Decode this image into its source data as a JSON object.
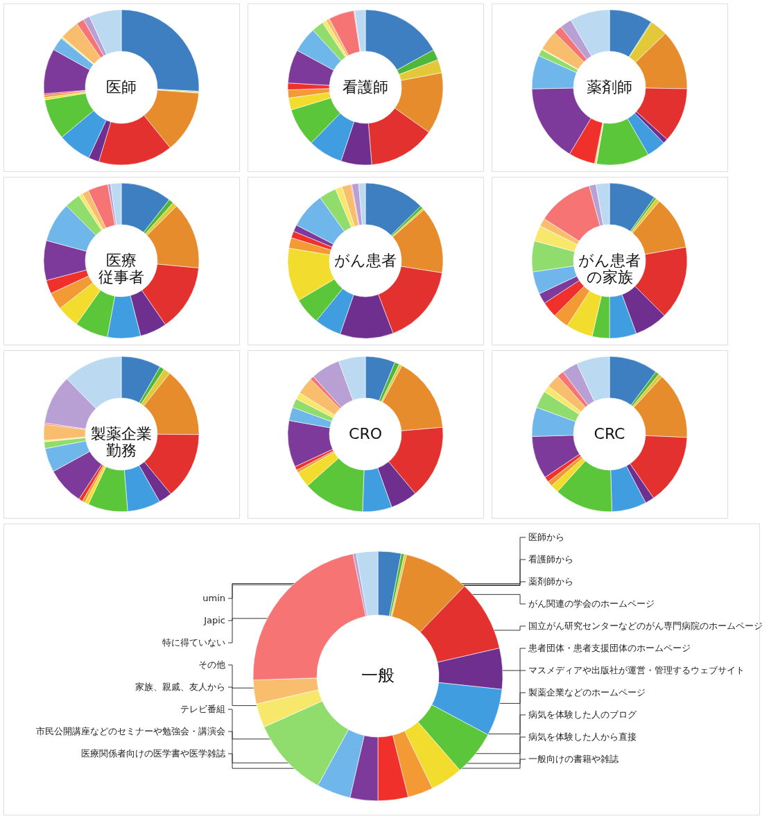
{
  "chart_data": [
    {
      "type": "donut",
      "title": "医師",
      "categories": [
        null,
        null,
        null,
        null,
        null,
        null,
        null,
        null,
        null,
        null,
        null,
        null,
        null,
        null,
        null,
        null,
        null,
        null,
        null
      ],
      "values": [
        25.8,
        0.2,
        0.2,
        13,
        15.5,
        2.2,
        7,
        8.5,
        0.5,
        0.5,
        0.3,
        9.4,
        2.8,
        0.2,
        0.2,
        4,
        1.6,
        1.4,
        6.7
      ],
      "colors": [
        "#3d7fc0",
        "#4fb83a",
        "#e3c93a",
        "#e68c2c",
        "#e2312e",
        "#6e2f8e",
        "#3f9de0",
        "#5cc63a",
        "#f2dd2e",
        "#f39a35",
        "#f0302a",
        "#7e3a9a",
        "#6fb7ea",
        "#90dd6e",
        "#f7e86c",
        "#f8be6e",
        "#f77474",
        "#b9a0d4",
        "#bcd9f2"
      ]
    },
    {
      "type": "donut",
      "title": "看護師",
      "categories": [
        null,
        null,
        null,
        null,
        null,
        null,
        null,
        null,
        null,
        null,
        null,
        null,
        null,
        null,
        null,
        null,
        null,
        null,
        null
      ],
      "values": [
        17,
        2.2,
        2.8,
        12.8,
        13.9,
        6.4,
        7.2,
        8,
        2.5,
        1.7,
        1.4,
        7,
        5.3,
        2.5,
        0.8,
        0.8,
        5.3,
        0.2,
        2.2
      ],
      "colors": [
        "#3d7fc0",
        "#4fb83a",
        "#e3c93a",
        "#e68c2c",
        "#e2312e",
        "#6e2f8e",
        "#3f9de0",
        "#5cc63a",
        "#f2dd2e",
        "#f39a35",
        "#f0302a",
        "#7e3a9a",
        "#6fb7ea",
        "#90dd6e",
        "#f7e86c",
        "#f8be6e",
        "#f77474",
        "#b9a0d4",
        "#bcd9f2"
      ]
    },
    {
      "type": "donut",
      "title": "薬剤師",
      "categories": [
        null,
        null,
        null,
        null,
        null,
        null,
        null,
        null,
        null,
        null,
        null,
        null,
        null,
        null,
        null,
        null,
        null,
        null,
        null
      ],
      "values": [
        9,
        0.2,
        3.6,
        12.5,
        11.4,
        1,
        4,
        11,
        0.2,
        0.2,
        5.5,
        16.1,
        7,
        1.4,
        0.2,
        4.2,
        1.7,
        2.5,
        8.3
      ],
      "colors": [
        "#3d7fc0",
        "#4fb83a",
        "#e3c93a",
        "#e68c2c",
        "#e2312e",
        "#6e2f8e",
        "#3f9de0",
        "#5cc63a",
        "#f2dd2e",
        "#f39a35",
        "#f0302a",
        "#7e3a9a",
        "#6fb7ea",
        "#90dd6e",
        "#f7e86c",
        "#f8be6e",
        "#f77474",
        "#b9a0d4",
        "#bcd9f2"
      ]
    },
    {
      "type": "donut",
      "title": "医療従事者",
      "categories": [
        null,
        null,
        null,
        null,
        null,
        null,
        null,
        null,
        null,
        null,
        null,
        null,
        null,
        null,
        null,
        null,
        null,
        null,
        null
      ],
      "values": [
        10.6,
        1,
        1,
        13.9,
        13.9,
        5.6,
        6.9,
        6.9,
        4.7,
        3.6,
        2.8,
        8.3,
        8.3,
        3.3,
        0.8,
        1.4,
        4.2,
        0.6,
        2.2
      ],
      "colors": [
        "#3d7fc0",
        "#4fb83a",
        "#e3c93a",
        "#e68c2c",
        "#e2312e",
        "#6e2f8e",
        "#3f9de0",
        "#5cc63a",
        "#f2dd2e",
        "#f39a35",
        "#f0302a",
        "#7e3a9a",
        "#6fb7ea",
        "#90dd6e",
        "#f7e86c",
        "#f8be6e",
        "#f77474",
        "#b9a0d4",
        "#bcd9f2"
      ]
    },
    {
      "type": "donut",
      "title": "がん患者",
      "categories": [
        null,
        null,
        null,
        null,
        null,
        null,
        null,
        null,
        null,
        null,
        null,
        null,
        null,
        null,
        null,
        null,
        null,
        null,
        null
      ],
      "values": [
        12.6,
        0.6,
        0.4,
        13.9,
        16.7,
        11.1,
        5.6,
        5.6,
        11.1,
        2.2,
        1.4,
        1.4,
        7.5,
        3.6,
        1.4,
        1.9,
        0.2,
        1.4,
        1.4
      ],
      "colors": [
        "#3d7fc0",
        "#4fb83a",
        "#e3c93a",
        "#e68c2c",
        "#e2312e",
        "#6e2f8e",
        "#3f9de0",
        "#5cc63a",
        "#f2dd2e",
        "#f39a35",
        "#f0302a",
        "#7e3a9a",
        "#6fb7ea",
        "#90dd6e",
        "#f7e86c",
        "#f8be6e",
        "#f77474",
        "#b9a0d4",
        "#bcd9f2"
      ]
    },
    {
      "type": "donut",
      "title": "がん患者の家族",
      "categories": [
        null,
        null,
        null,
        null,
        null,
        null,
        null,
        null,
        null,
        null,
        null,
        null,
        null,
        null,
        null,
        null,
        null,
        null,
        null
      ],
      "values": [
        9.8,
        0.5,
        0.8,
        11.1,
        15.3,
        6.9,
        5.6,
        3.6,
        5.6,
        3.3,
        3.3,
        2.2,
        4.7,
        6.4,
        3.3,
        1.7,
        11.7,
        1.4,
        2.8
      ],
      "colors": [
        "#3d7fc0",
        "#4fb83a",
        "#e3c93a",
        "#e68c2c",
        "#e2312e",
        "#6e2f8e",
        "#3f9de0",
        "#5cc63a",
        "#f2dd2e",
        "#f39a35",
        "#f0302a",
        "#7e3a9a",
        "#6fb7ea",
        "#90dd6e",
        "#f7e86c",
        "#f8be6e",
        "#f77474",
        "#b9a0d4",
        "#bcd9f2"
      ]
    },
    {
      "type": "donut",
      "title": "製薬企業勤務",
      "categories": [
        null,
        null,
        null,
        null,
        null,
        null,
        null,
        null,
        null,
        null,
        null,
        null,
        null,
        null,
        null,
        null,
        null,
        null,
        null
      ],
      "values": [
        8.3,
        1,
        1.4,
        14.4,
        13.9,
        2.8,
        6.9,
        8.3,
        0.8,
        0.6,
        0.8,
        7.8,
        5,
        1.4,
        0.3,
        3.3,
        0.3,
        10.3,
        12.4
      ],
      "colors": [
        "#3d7fc0",
        "#4fb83a",
        "#e3c93a",
        "#e68c2c",
        "#e2312e",
        "#6e2f8e",
        "#3f9de0",
        "#5cc63a",
        "#f2dd2e",
        "#f39a35",
        "#f0302a",
        "#7e3a9a",
        "#6fb7ea",
        "#90dd6e",
        "#f7e86c",
        "#f8be6e",
        "#f77474",
        "#b9a0d4",
        "#bcd9f2"
      ]
    },
    {
      "type": "donut",
      "title": "CRO",
      "categories": [
        null,
        null,
        null,
        null,
        null,
        null,
        null,
        null,
        null,
        null,
        null,
        null,
        null,
        null,
        null,
        null,
        null,
        null,
        null
      ],
      "values": [
        6.2,
        1,
        0.6,
        15.8,
        15.3,
        5.6,
        6.1,
        12.8,
        3.3,
        0.6,
        0.8,
        9.7,
        2.8,
        1.9,
        1.4,
        3.6,
        0.8,
        6.1,
        5.6
      ],
      "colors": [
        "#3d7fc0",
        "#4fb83a",
        "#e3c93a",
        "#e68c2c",
        "#e2312e",
        "#6e2f8e",
        "#3f9de0",
        "#5cc63a",
        "#f2dd2e",
        "#f39a35",
        "#f0302a",
        "#7e3a9a",
        "#6fb7ea",
        "#90dd6e",
        "#f7e86c",
        "#f8be6e",
        "#f77474",
        "#b9a0d4",
        "#bcd9f2"
      ]
    },
    {
      "type": "donut",
      "title": "CRC",
      "categories": [
        null,
        null,
        null,
        null,
        null,
        null,
        null,
        null,
        null,
        null,
        null,
        null,
        null,
        null,
        null,
        null,
        null,
        null,
        null
      ],
      "values": [
        10.2,
        0.8,
        0.8,
        13.9,
        14.7,
        1.9,
        7.2,
        12.2,
        1.7,
        1.1,
        1.1,
        8.9,
        6.1,
        3.6,
        1.4,
        2.8,
        1.4,
        3.3,
        6.9
      ],
      "colors": [
        "#3d7fc0",
        "#4fb83a",
        "#e3c93a",
        "#e68c2c",
        "#e2312e",
        "#6e2f8e",
        "#3f9de0",
        "#5cc63a",
        "#f2dd2e",
        "#f39a35",
        "#f0302a",
        "#7e3a9a",
        "#6fb7ea",
        "#90dd6e",
        "#f7e86c",
        "#f8be6e",
        "#f77474",
        "#b9a0d4",
        "#bcd9f2"
      ]
    },
    {
      "type": "donut",
      "title": "一般",
      "categories": [
        "医師から",
        "看護師から",
        "薬剤師から",
        "がん関連の学会のホームページ",
        "国立がん研究センターなどのがん専門病院のホームページ",
        "患者団体・患者支援団体のホームページ",
        "マスメディアや出版社が運営・管理するウェブサイト",
        "製薬企業などのホームページ",
        "病気を体験した人のブログ",
        "病気を体験した人から直接",
        "一般向けの書籍や雑誌",
        "医療関係者向けの医学書や医学雑誌",
        "市民公開講座などのセミナーや勉強会・講演会",
        "テレビ番組",
        "家族、親戚、友人から",
        "その他",
        "特に得ていない",
        "Japic",
        "umin"
      ],
      "values": [
        3,
        0.4,
        0.3,
        8.5,
        9.2,
        5.3,
        6.1,
        5.8,
        4.2,
        3.3,
        3.9,
        3.6,
        4.4,
        10.3,
        3.1,
        3.1,
        22.3,
        0.4,
        2.8
      ],
      "colors": [
        "#3d7fc0",
        "#4fb83a",
        "#e3c93a",
        "#e68c2c",
        "#e2312e",
        "#6e2f8e",
        "#3f9de0",
        "#5cc63a",
        "#f2dd2e",
        "#f39a35",
        "#f0302a",
        "#7e3a9a",
        "#6fb7ea",
        "#90dd6e",
        "#f7e86c",
        "#f8be6e",
        "#f77474",
        "#b9a0d4",
        "#bcd9f2"
      ]
    }
  ]
}
